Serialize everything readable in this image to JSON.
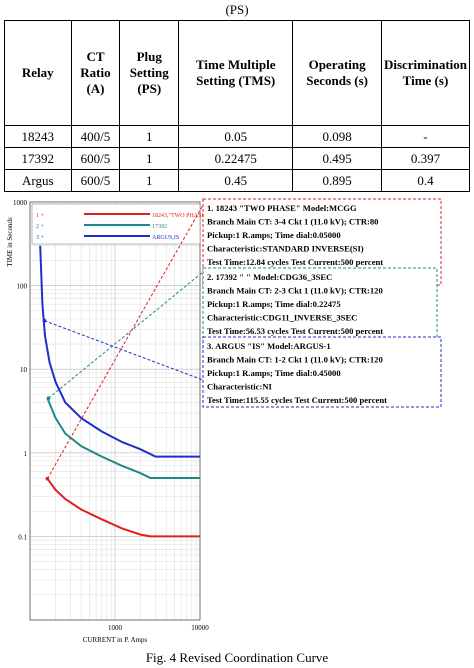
{
  "top_caption": "(PS)",
  "table": {
    "headers": [
      "Relay",
      "CT Ratio (A)",
      "Plug Setting (PS)",
      "Time Multiple Setting (TMS)",
      "Operating Seconds (s)",
      "Discrimination Time (s)"
    ],
    "rows": [
      [
        "18243",
        "400/5",
        "1",
        "0.05",
        "0.098",
        "-"
      ],
      [
        "17392",
        "600/5",
        "1",
        "0.22475",
        "0.495",
        "0.397"
      ],
      [
        "Argus",
        "600/5",
        "1",
        "0.45",
        "0.895",
        "0.4"
      ]
    ]
  },
  "chart_data": {
    "type": "line",
    "scale": "log-log",
    "xlabel": "CURRENT in P. Amps",
    "ylabel": "TIME in Seconds",
    "xlim": [
      100,
      10000
    ],
    "ylim": [
      0.01,
      1000
    ],
    "x_ticks": [
      "1000",
      "10000"
    ],
    "y_ticks": [
      "1000",
      "100",
      "10",
      "1",
      "0.1"
    ],
    "legend": [
      {
        "num": "1 +",
        "label": "18243,\"TWO PHASE\"",
        "color": "#e02020"
      },
      {
        "num": "2 +",
        "label": "17392",
        "color": "#1c8a84"
      },
      {
        "num": "3 +",
        "label": "ARGUS,IS",
        "color": "#1f2fc8"
      }
    ],
    "series": [
      {
        "name": "18243,\"TWO PHASE\"",
        "color": "#e02020",
        "x": [
          160,
          200,
          260,
          400,
          700,
          1200,
          2000,
          2600,
          10000
        ],
        "y": [
          0.49,
          0.36,
          0.28,
          0.21,
          0.16,
          0.125,
          0.105,
          0.1,
          0.1
        ]
      },
      {
        "name": "17392",
        "color": "#1c8a84",
        "x": [
          160,
          200,
          260,
          400,
          700,
          1200,
          2000,
          2600,
          10000
        ],
        "y": [
          4.5,
          2.6,
          1.7,
          1.2,
          0.9,
          0.7,
          0.57,
          0.5,
          0.5
        ]
      },
      {
        "name": "ARGUS,IS",
        "color": "#1f2fc8",
        "x": [
          132,
          140,
          150,
          170,
          200,
          260,
          400,
          700,
          1200,
          2000,
          3000,
          10000
        ],
        "y": [
          300,
          60,
          25,
          12,
          7,
          4,
          2.6,
          1.8,
          1.35,
          1.1,
          0.9,
          0.9
        ]
      }
    ],
    "annotations": [
      {
        "color": "#e02020",
        "lines": [
          "1. 18243 \"TWO PHASE\" Model:MCGG",
          "Branch Main CT: 3-4 Ckt 1 (11.0 kV); CTR:80",
          "Pickup:1 R.amps;  Time dial:0.05000",
          "Characteristic:STANDARD INVERSE(SI)",
          "Test Time:12.84 cycles Test Current:500 percent"
        ]
      },
      {
        "color": "#1c8a84",
        "lines": [
          "2. 17392 \" \" Model:CDG36_3SEC",
          "Branch Main CT: 2-3 Ckt 1 (11.0 kV); CTR:120",
          "Pickup:1 R.amps;  Time dial:0.22475",
          "Characteristic:CDG11_INVERSE_3SEC",
          "Test Time:56.53 cycles Test Current:500 percent"
        ]
      },
      {
        "color": "#1f2fc8",
        "lines": [
          "3. ARGUS \"IS\" Model:ARGUS-1",
          "Branch Main CT: 1-2 Ckt 1 (11.0 kV); CTR:120",
          "Pickup:1 R.amps;  Time dial:0.45000",
          "Characteristic:NI",
          "Test Time:115.55 cycles Test Current:500 percent"
        ]
      }
    ]
  },
  "figure_caption": "Fig. 4  Revised Coordination Curve"
}
